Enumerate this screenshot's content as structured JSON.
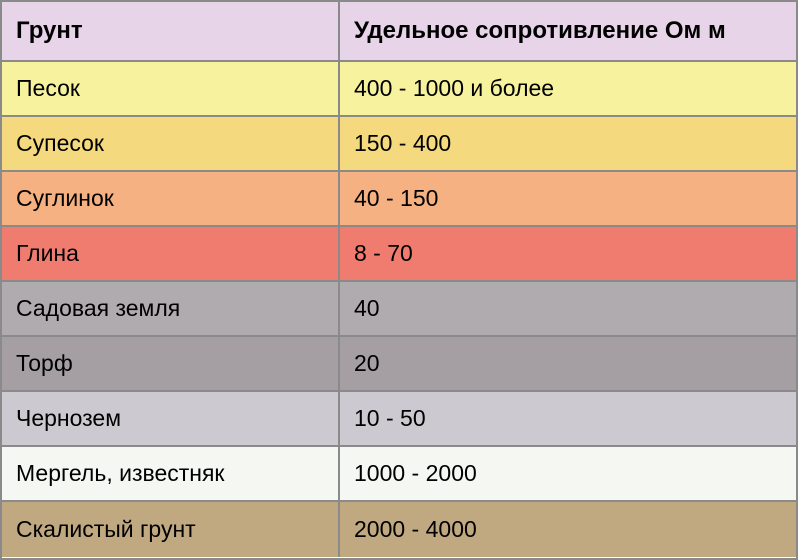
{
  "table": {
    "header": {
      "col1": "Грунт",
      "col2": "Удельное сопротивление Ом м",
      "bg_color": "#e8d4e8"
    },
    "rows": [
      {
        "col1": "Песок",
        "col2": "400 - 1000 и более",
        "bg_color": "#f7f29e"
      },
      {
        "col1": "Супесок",
        "col2": "150 - 400",
        "bg_color": "#f4d97e"
      },
      {
        "col1": "Суглинок",
        "col2": "40 - 150",
        "bg_color": "#f5b181"
      },
      {
        "col1": "Глина",
        "col2": "8 - 70",
        "bg_color": "#f07b6f"
      },
      {
        "col1": "Садовая земля",
        "col2": "40",
        "bg_color": "#b0abaf"
      },
      {
        "col1": "Торф",
        "col2": "20",
        "bg_color": "#a59fa3"
      },
      {
        "col1": "Чернозем",
        "col2": "10 - 50",
        "bg_color": "#cccad0"
      },
      {
        "col1": "Мергель, известняк",
        "col2": "1000 - 2000",
        "bg_color": "#f5f8f2"
      },
      {
        "col1": "Скалистый грунт",
        "col2": "2000 - 4000",
        "bg_color": "#c0a981"
      }
    ],
    "border_color": "#8a8a8a",
    "text_color": "#000000",
    "font_size_header": 24,
    "font_size_body": 23
  }
}
